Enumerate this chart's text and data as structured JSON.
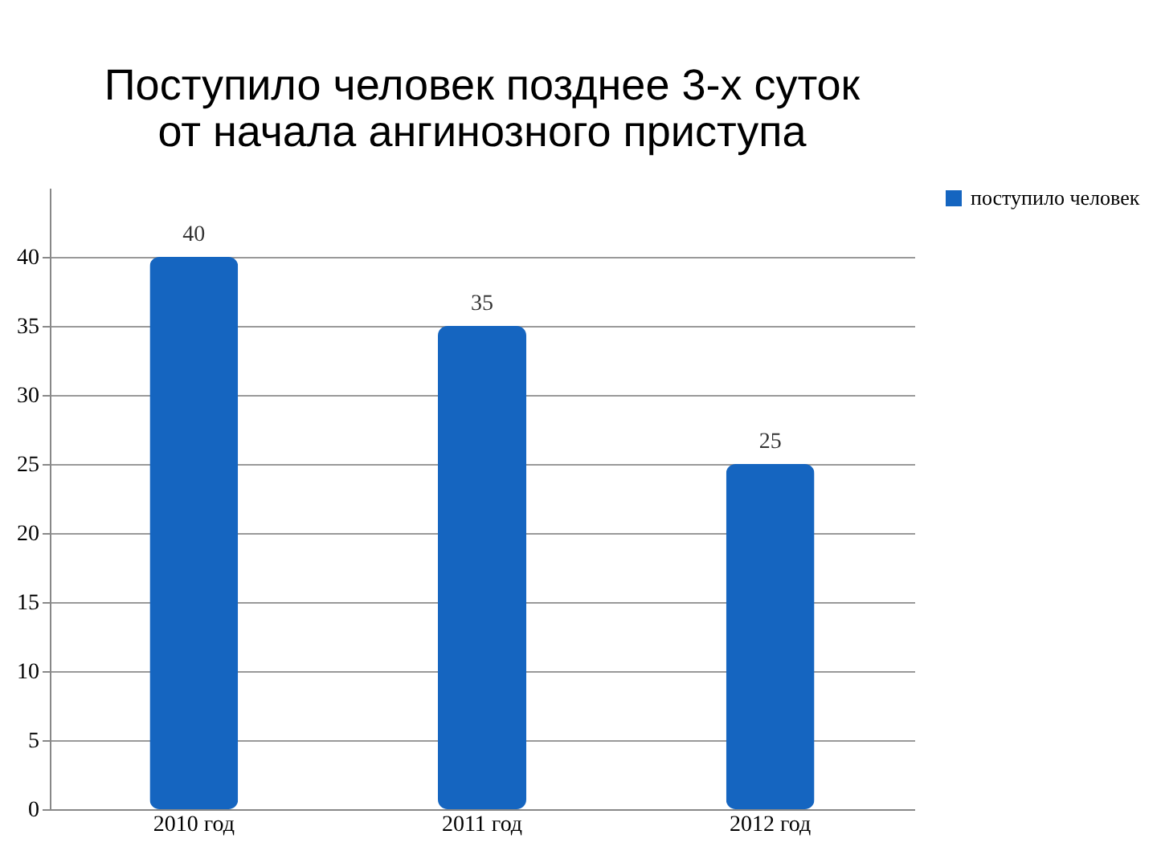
{
  "chart_data": {
    "type": "bar",
    "title": "Поступило человек позднее 3-х суток от начала ангинозного приступа",
    "categories": [
      "2010 год",
      "2011 год",
      "2012 год"
    ],
    "series": [
      {
        "name": "поступило человек",
        "color": "#1565c0",
        "values": [
          40,
          35,
          25
        ]
      }
    ],
    "ylim": [
      0,
      45
    ],
    "yticks": [
      0,
      5,
      10,
      15,
      20,
      25,
      30,
      35,
      40
    ],
    "grid": "y",
    "legend": "right",
    "data_labels": true
  }
}
